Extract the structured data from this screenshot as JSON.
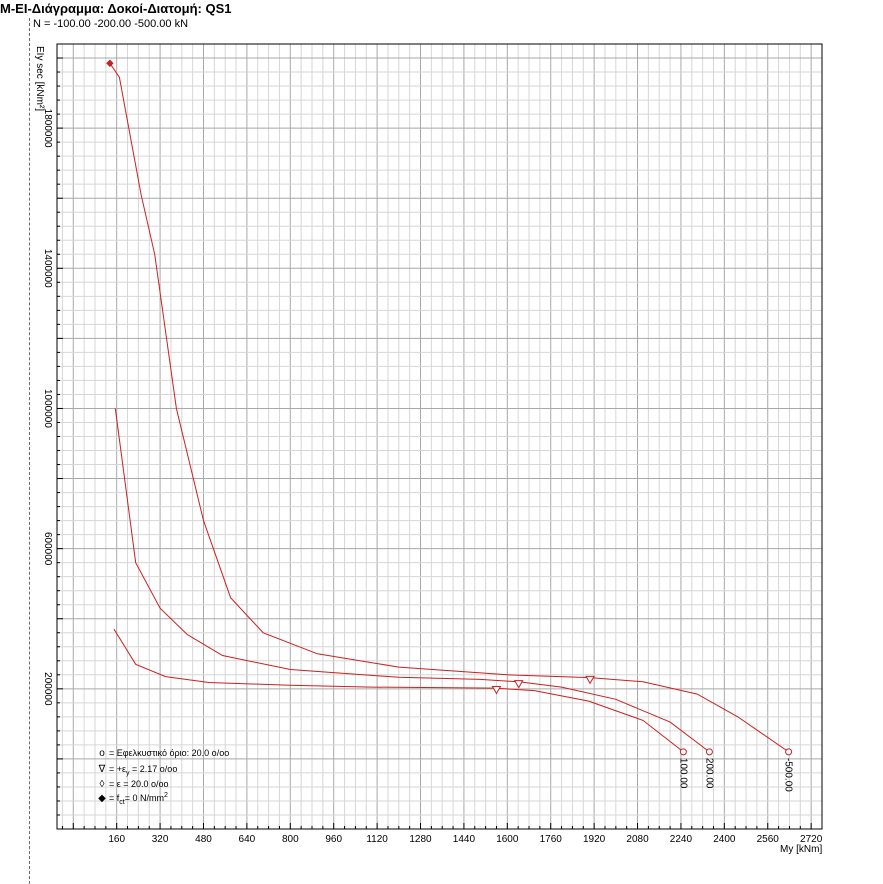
{
  "title": "M-EI-Διάγραμμα: Δοκοί-Διατομή: QS1",
  "subtitle": "N = -100.00 -200.00 -500.00 kN",
  "colors": {
    "curve": "#cc1f1f",
    "grid_major": "#a8a8a8",
    "grid_minor": "#d6d6d6",
    "axis": "#000000"
  },
  "legend": {
    "items": [
      {
        "symbol": "o",
        "text": "= Εφελκυστικό όριο: 20.0 o/oo"
      },
      {
        "symbol": "∇",
        "text_main": "= +ε",
        "text_sub": "y",
        "text_rest": " = 2.17 o/oo"
      },
      {
        "symbol": "◊",
        "text": "= ε = 20.0 o/oo"
      },
      {
        "symbol": "◆",
        "text_main": "= f",
        "text_sub": "ct",
        "text_rest": "= 0 N/mm",
        "text_sup": "2"
      }
    ]
  },
  "chart_data": {
    "type": "line",
    "title": "M-EI-Διάγραμμα: Δοκοί-Διατομή: QS1",
    "subtitle": "N = -100.00 -200.00 -500.00 kN",
    "xlabel": "My [kNm]",
    "ylabel": "EIy sec [kNm²]",
    "xlim": [
      -60,
      2760
    ],
    "ylim": [
      -200000,
      2040000
    ],
    "xticks": [
      160,
      320,
      480,
      640,
      800,
      960,
      1120,
      1280,
      1440,
      1600,
      1760,
      1920,
      2080,
      2240,
      2400,
      2560,
      2720
    ],
    "yticks": [
      200000,
      600000,
      1000000,
      1400000,
      1800000
    ],
    "grid": true,
    "series": [
      {
        "name": "100.00",
        "points": [
          [
            150,
            370000
          ],
          [
            230,
            270000
          ],
          [
            340,
            235000
          ],
          [
            500,
            218000
          ],
          [
            800,
            210000
          ],
          [
            1100,
            205000
          ],
          [
            1400,
            203000
          ],
          [
            1550,
            202000
          ],
          [
            1700,
            195000
          ],
          [
            1900,
            165000
          ],
          [
            2100,
            110000
          ],
          [
            2249,
            20000
          ]
        ],
        "markers": [
          {
            "type": "yield",
            "x": 1560,
            "y": 198000
          },
          {
            "type": "ultimate",
            "x": 2249,
            "y": 20000
          }
        ],
        "end_label": "100.00"
      },
      {
        "name": "200.00",
        "points": [
          [
            155,
            1000000
          ],
          [
            230,
            560000
          ],
          [
            320,
            430000
          ],
          [
            420,
            355000
          ],
          [
            550,
            295000
          ],
          [
            800,
            255000
          ],
          [
            1200,
            233000
          ],
          [
            1500,
            227000
          ],
          [
            1642,
            220000
          ],
          [
            1800,
            205000
          ],
          [
            2000,
            170000
          ],
          [
            2200,
            105000
          ],
          [
            2345,
            20000
          ]
        ],
        "markers": [
          {
            "type": "yield",
            "x": 1642,
            "y": 215000
          },
          {
            "type": "ultimate",
            "x": 2345,
            "y": 20000
          }
        ],
        "end_label": "200.00"
      },
      {
        "name": "500.00",
        "points": [
          [
            135,
            1985000
          ],
          [
            170,
            1945000
          ],
          [
            250,
            1610000
          ],
          [
            300,
            1440000
          ],
          [
            380,
            1000000
          ],
          [
            480,
            680000
          ],
          [
            580,
            460000
          ],
          [
            700,
            360000
          ],
          [
            900,
            300000
          ],
          [
            1200,
            262000
          ],
          [
            1600,
            240000
          ],
          [
            1905,
            232000
          ],
          [
            2100,
            220000
          ],
          [
            2300,
            185000
          ],
          [
            2450,
            120000
          ],
          [
            2637,
            20000
          ]
        ],
        "markers": [
          {
            "type": "fct",
            "x": 135,
            "y": 1985000
          },
          {
            "type": "yield",
            "x": 1905,
            "y": 227000
          },
          {
            "type": "ultimate",
            "x": 2637,
            "y": 20000
          }
        ],
        "end_label": "-500.00"
      }
    ]
  }
}
